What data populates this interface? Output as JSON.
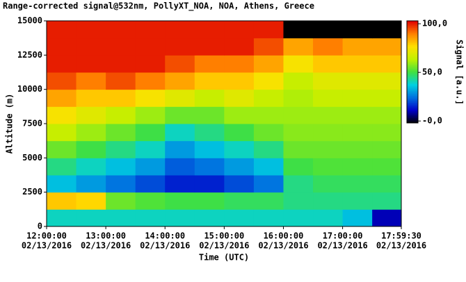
{
  "chart_data": {
    "type": "heatmap",
    "title": "Range-corrected signal@532nm, PollyXT_NOA, NOA, Athens, Greece",
    "x_label": "Time (UTC)",
    "y_label": "Altitude (m)",
    "colorbar_label": "Signal [a.u.]",
    "x": [
      12,
      12.5,
      13,
      13.5,
      14,
      14.5,
      15,
      15.5,
      16,
      16.5,
      17,
      17.5,
      17.9917
    ],
    "y": [
      0,
      1250,
      2500,
      3750,
      5000,
      6250,
      7500,
      8750,
      10000,
      11250,
      12500,
      13750,
      15000
    ],
    "z": [
      [
        40,
        40,
        40,
        40,
        40,
        40,
        40,
        40,
        40,
        40,
        35,
        10
      ],
      [
        80,
        78,
        55,
        52,
        50,
        50,
        48,
        48,
        45,
        45,
        45,
        45
      ],
      [
        35,
        30,
        25,
        20,
        15,
        15,
        20,
        25,
        45,
        48,
        48,
        48
      ],
      [
        45,
        40,
        35,
        30,
        22,
        25,
        30,
        35,
        50,
        52,
        52,
        52
      ],
      [
        55,
        50,
        45,
        40,
        30,
        35,
        40,
        45,
        55,
        55,
        55,
        55
      ],
      [
        65,
        60,
        55,
        50,
        40,
        45,
        50,
        55,
        58,
        58,
        58,
        58
      ],
      [
        75,
        70,
        65,
        60,
        55,
        55,
        60,
        60,
        60,
        60,
        60,
        60
      ],
      [
        85,
        80,
        80,
        75,
        70,
        65,
        70,
        65,
        62,
        65,
        65,
        65
      ],
      [
        95,
        90,
        95,
        90,
        85,
        80,
        80,
        75,
        65,
        70,
        70,
        70
      ],
      [
        100,
        100,
        100,
        100,
        95,
        90,
        90,
        85,
        75,
        80,
        80,
        80
      ],
      [
        100,
        100,
        100,
        100,
        100,
        100,
        100,
        95,
        85,
        90,
        85,
        85
      ],
      [
        100,
        100,
        100,
        100,
        100,
        100,
        100,
        100,
        -5,
        -5,
        -5,
        -5
      ]
    ],
    "xlim": [
      12,
      17.9917
    ],
    "ylim": [
      0,
      15000
    ],
    "clim": [
      -2,
      103
    ],
    "colormap": [
      "#000000",
      "#0000c8",
      "#0070e0",
      "#00d0e0",
      "#40e040",
      "#c0f000",
      "#ffe000",
      "#ff8000",
      "#e00000"
    ],
    "xticks": [
      {
        "value": 12,
        "label": "12:00:00",
        "date": "02/13/2016"
      },
      {
        "value": 13,
        "label": "13:00:00",
        "date": "02/13/2016"
      },
      {
        "value": 14,
        "label": "14:00:00",
        "date": "02/13/2016"
      },
      {
        "value": 15,
        "label": "15:00:00",
        "date": "02/13/2016"
      },
      {
        "value": 16,
        "label": "16:00:00",
        "date": "02/13/2016"
      },
      {
        "value": 17,
        "label": "17:00:00",
        "date": "02/13/2016"
      },
      {
        "value": 17.9917,
        "label": "17:59:30",
        "date": "02/13/2016"
      }
    ],
    "yticks": [
      0,
      2500,
      5000,
      7500,
      10000,
      12500,
      15000
    ],
    "cticks": [
      {
        "value": 0,
        "label": "-0,0"
      },
      {
        "value": 50,
        "label": "50,0"
      },
      {
        "value": 100,
        "label": "100,0"
      }
    ]
  }
}
